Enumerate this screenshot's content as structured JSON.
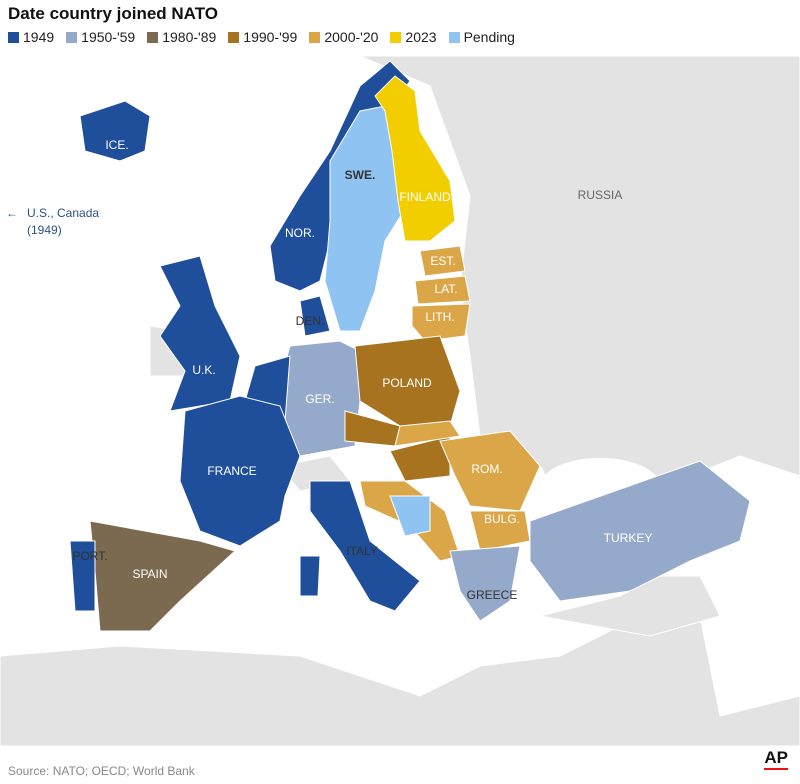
{
  "header": {
    "title": "Date country joined NATO"
  },
  "legend": [
    {
      "label": "1949",
      "color": "#1f4e9b"
    },
    {
      "label": "1950-'59",
      "color": "#95aacb"
    },
    {
      "label": "1980-'89",
      "color": "#7b6a4f"
    },
    {
      "label": "1990-'99",
      "color": "#a7731f"
    },
    {
      "label": "2000-'20",
      "color": "#dba647"
    },
    {
      "label": "2023",
      "color": "#f2cd00"
    },
    {
      "label": "Pending",
      "color": "#8fc3f2"
    }
  ],
  "note": {
    "arrow": "←",
    "line1": "U.S., Canada",
    "line2": "(1949)"
  },
  "labels": {
    "russia": "RUSSIA",
    "iceland": "ICE.",
    "sweden": "SWE.",
    "finland": "FINLAND",
    "norway": "NOR.",
    "estonia": "EST.",
    "latvia": "LAT.",
    "lithuania": "LITH.",
    "denmark": "DEN.",
    "uk": "U.K.",
    "germany": "GER.",
    "poland": "POLAND",
    "france": "FRANCE",
    "romania": "ROM.",
    "bulgaria": "BULG.",
    "turkey": "TURKEY",
    "portugal": "PORT.",
    "spain": "SPAIN",
    "italy": "ITALY",
    "greece": "GREECE"
  },
  "footer": {
    "source": "Source: NATO; OECD; World Bank",
    "logo": "AP"
  }
}
